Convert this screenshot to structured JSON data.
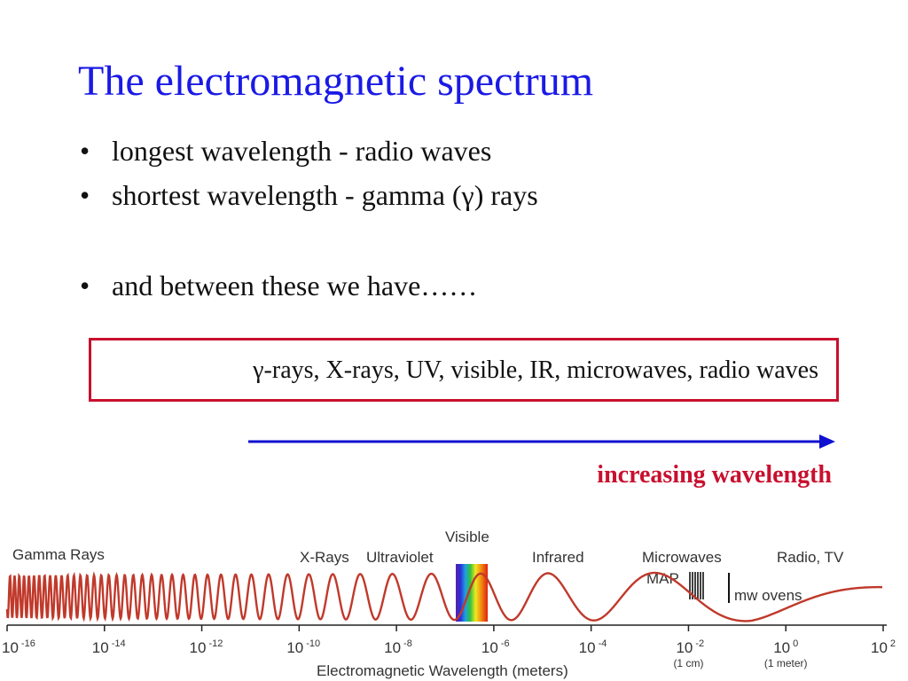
{
  "title": "The electromagnetic spectrum",
  "bullets": [
    "longest wavelength - radio waves",
    "shortest wavelength - gamma (γ) rays",
    "and between these we have……"
  ],
  "box_text": "γ-rays, X-rays, UV, visible, IR, microwaves, radio waves",
  "arrow_label": "increasing wavelength",
  "colors": {
    "title": "#1a1ae6",
    "box_border": "#c8102e",
    "arrow": "#1010d0",
    "arrow_label": "#c8102e",
    "wave": "#c0392b"
  },
  "spectrum": {
    "regions": [
      "Gamma Rays",
      "X-Rays",
      "Ultraviolet",
      "Visible",
      "Infrared",
      "Microwaves",
      "Radio, TV"
    ],
    "map_label": "MAP",
    "mw_label": "mw ovens",
    "ticks": [
      {
        "base": "10",
        "exp": "-16",
        "sub": ""
      },
      {
        "base": "10",
        "exp": "-14",
        "sub": ""
      },
      {
        "base": "10",
        "exp": "-12",
        "sub": ""
      },
      {
        "base": "10",
        "exp": "-10",
        "sub": ""
      },
      {
        "base": "10",
        "exp": "-8",
        "sub": ""
      },
      {
        "base": "10",
        "exp": "-6",
        "sub": ""
      },
      {
        "base": "10",
        "exp": "-4",
        "sub": ""
      },
      {
        "base": "10",
        "exp": "-2",
        "sub": "(1 cm)"
      },
      {
        "base": "10",
        "exp": "0",
        "sub": "(1 meter)"
      },
      {
        "base": "10",
        "exp": "2",
        "sub": ""
      }
    ],
    "axis_label": "Electromagnetic Wavelength (meters)"
  }
}
